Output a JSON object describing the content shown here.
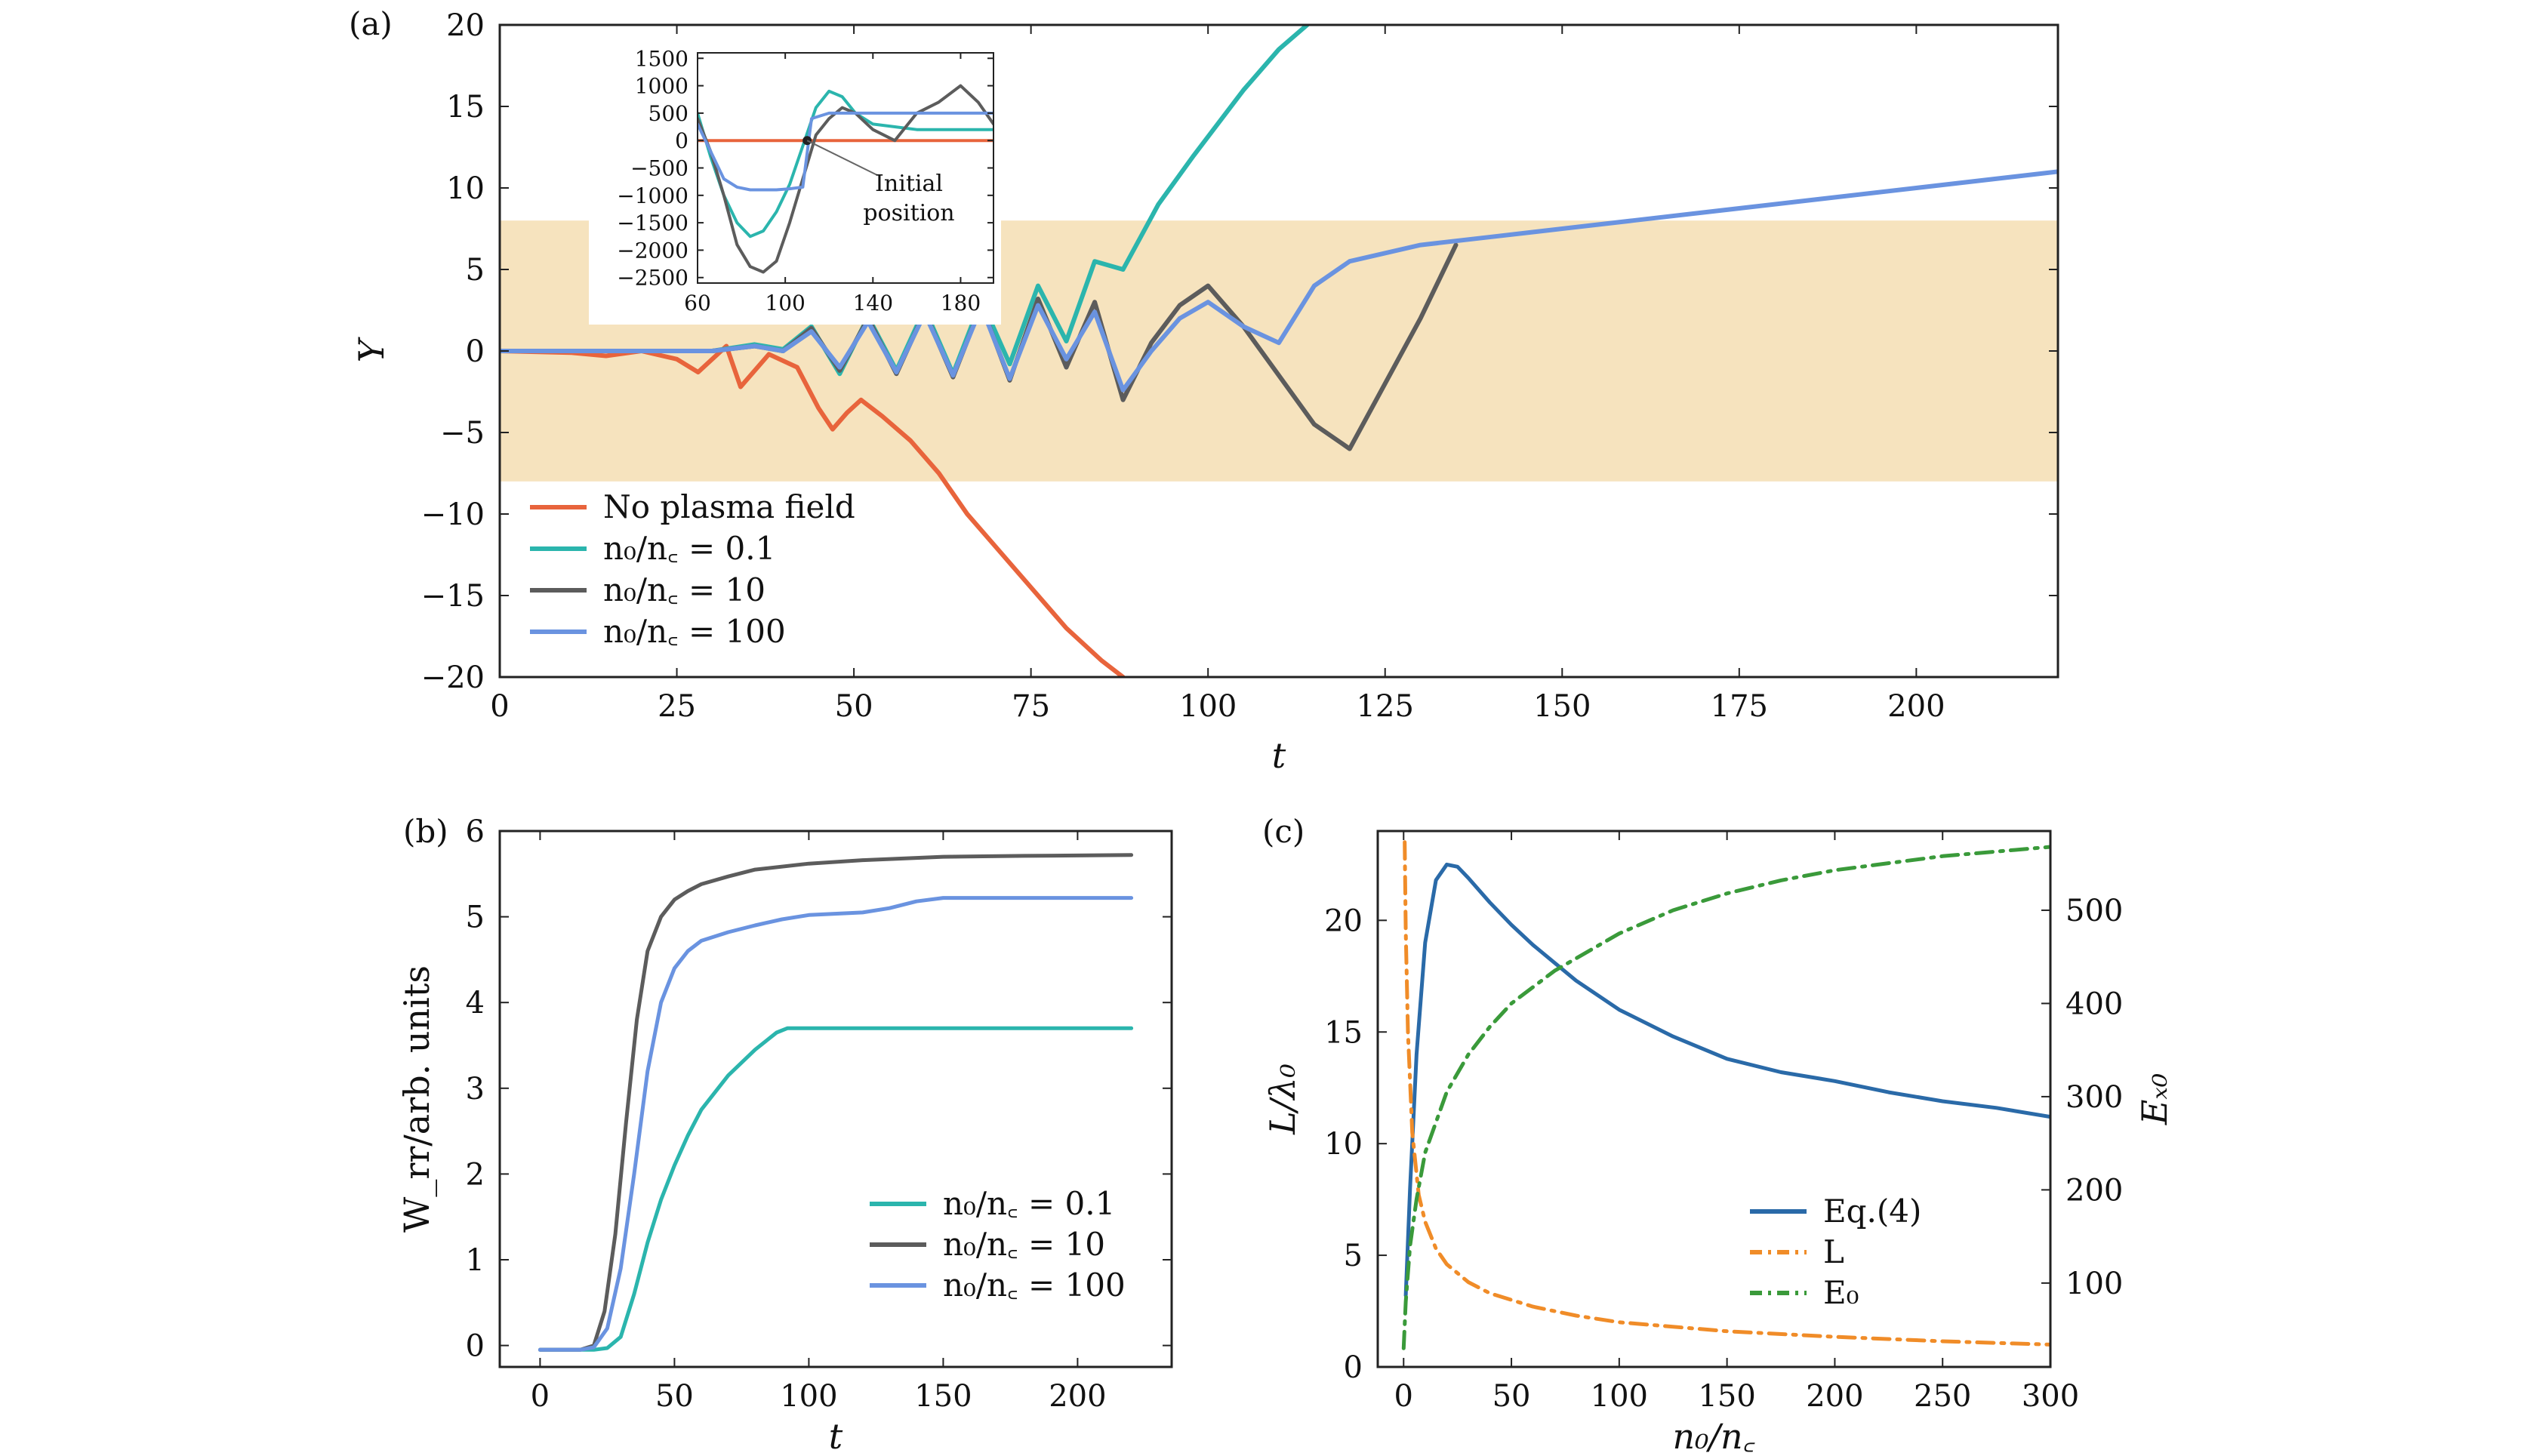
{
  "figure": {
    "panel_labels": [
      "(a)",
      "(b)",
      "(c)"
    ]
  },
  "chart_data": [
    {
      "panel": "(a)",
      "type": "line",
      "xlabel": "t",
      "ylabel": "Y",
      "xlim": [
        0,
        220
      ],
      "ylim": [
        -20,
        20
      ],
      "xticks": [
        0,
        25,
        50,
        75,
        100,
        125,
        150,
        175,
        200
      ],
      "yticks": [
        -20,
        -15,
        -10,
        -5,
        0,
        5,
        10,
        15,
        20
      ],
      "shaded_band": {
        "y_range": [
          -8,
          8
        ],
        "color": "#f5deb3"
      },
      "legend_position": "bottom-left",
      "series": [
        {
          "name": "No plasma field",
          "color": "#e8643c",
          "x": [
            0,
            10,
            15,
            20,
            25,
            28,
            32,
            34,
            38,
            42,
            45,
            47,
            49,
            51,
            54,
            58,
            62,
            66,
            70,
            75,
            80,
            85,
            88
          ],
          "y": [
            0,
            -0.1,
            -0.3,
            0,
            -0.5,
            -1.3,
            0.3,
            -2.2,
            -0.2,
            -1.0,
            -3.5,
            -4.8,
            -3.8,
            -3.0,
            -4.0,
            -5.5,
            -7.5,
            -10.0,
            -12.0,
            -14.5,
            -17.0,
            -19.0,
            -20.0
          ]
        },
        {
          "name": "n₀/n꜀ = 0.1",
          "color": "#2bb5ad",
          "x": [
            0,
            20,
            30,
            36,
            40,
            44,
            48,
            52,
            56,
            60,
            64,
            68,
            72,
            76,
            80,
            84,
            88,
            93,
            98,
            105,
            110,
            114
          ],
          "y": [
            0,
            0,
            0,
            0.4,
            0.1,
            1.5,
            -1.4,
            2.1,
            -1.2,
            2.6,
            -1.4,
            3.1,
            -0.8,
            4.0,
            0.6,
            5.5,
            5.0,
            9.0,
            12.0,
            16.0,
            18.5,
            20.0
          ]
        },
        {
          "name": "n₀/n꜀ = 10",
          "color": "#5c5c5c",
          "x": [
            0,
            20,
            30,
            36,
            40,
            44,
            48,
            52,
            56,
            60,
            64,
            68,
            72,
            76,
            80,
            84,
            88,
            92,
            96,
            100,
            105,
            110,
            115,
            120,
            125,
            130,
            135
          ],
          "y": [
            0,
            0,
            0,
            0.3,
            0,
            1.4,
            -1.2,
            2.0,
            -1.4,
            2.4,
            -1.6,
            2.8,
            -1.8,
            3.2,
            -1.0,
            3.0,
            -3.0,
            0.5,
            2.8,
            4.0,
            1.5,
            -1.5,
            -4.5,
            -6.0,
            -2.0,
            2.0,
            6.5
          ]
        },
        {
          "name": "n₀/n꜀ = 100",
          "color": "#6a93e0",
          "x": [
            0,
            20,
            30,
            36,
            40,
            44,
            48,
            52,
            56,
            60,
            64,
            68,
            72,
            76,
            80,
            84,
            88,
            92,
            96,
            100,
            105,
            110,
            115,
            120,
            130,
            140,
            150,
            160,
            180,
            200,
            220
          ],
          "y": [
            0,
            0,
            0,
            0.3,
            0,
            1.2,
            -1.0,
            1.8,
            -1.3,
            2.3,
            -1.5,
            2.7,
            -1.7,
            2.8,
            -0.5,
            2.4,
            -2.4,
            0.0,
            2.0,
            3.0,
            1.5,
            0.5,
            4.0,
            5.5,
            6.5,
            7.0,
            7.5,
            8.0,
            9.0,
            10.0,
            11.0
          ]
        }
      ]
    },
    {
      "panel": "(a) inset",
      "type": "line",
      "xlim": [
        60,
        195
      ],
      "ylim": [
        -2600,
        1600
      ],
      "xticks": [
        60,
        100,
        140,
        180
      ],
      "yticks": [
        1500,
        1000,
        500,
        0,
        -500,
        -1000,
        -1500,
        -2000,
        -2500
      ],
      "annotation": {
        "text": [
          "Initial",
          "position"
        ],
        "x": 110,
        "y": 0
      },
      "series": [
        {
          "color": "#e8643c",
          "x": [
            60,
            70,
            80,
            90,
            100,
            110,
            120,
            140,
            160,
            195
          ],
          "y": [
            0,
            0,
            0,
            0,
            0,
            0,
            0,
            0,
            0,
            0
          ]
        },
        {
          "color": "#2bb5ad",
          "x": [
            60,
            66,
            72,
            78,
            84,
            90,
            96,
            102,
            108,
            114,
            120,
            126,
            132,
            140,
            150,
            160,
            170,
            180,
            195
          ],
          "y": [
            500,
            -300,
            -1000,
            -1500,
            -1750,
            -1650,
            -1300,
            -800,
            -100,
            600,
            900,
            800,
            500,
            300,
            250,
            200,
            200,
            200,
            200
          ]
        },
        {
          "color": "#5c5c5c",
          "x": [
            60,
            66,
            72,
            78,
            84,
            90,
            96,
            102,
            108,
            114,
            120,
            126,
            132,
            140,
            150,
            160,
            170,
            180,
            188,
            195
          ],
          "y": [
            400,
            -200,
            -1000,
            -1900,
            -2300,
            -2400,
            -2200,
            -1500,
            -700,
            100,
            400,
            600,
            500,
            200,
            0,
            500,
            700,
            1000,
            700,
            300
          ]
        },
        {
          "color": "#6a93e0",
          "x": [
            60,
            66,
            72,
            78,
            84,
            90,
            96,
            102,
            108,
            112,
            120,
            130,
            140,
            160,
            195
          ],
          "y": [
            300,
            -200,
            -700,
            -850,
            -900,
            -900,
            -900,
            -880,
            -850,
            400,
            500,
            500,
            500,
            500,
            500
          ]
        }
      ]
    },
    {
      "panel": "(b)",
      "type": "line",
      "xlabel": "t",
      "ylabel": "W_rr/arb. units",
      "xlim": [
        -15,
        235
      ],
      "ylim": [
        -0.25,
        6
      ],
      "xticks": [
        0,
        50,
        100,
        150,
        200
      ],
      "yticks": [
        0,
        1,
        2,
        3,
        4,
        5,
        6
      ],
      "legend_position": "bottom-right",
      "series": [
        {
          "name": "n₀/n꜀ = 0.1",
          "color": "#2bb5ad",
          "x": [
            0,
            15,
            20,
            25,
            30,
            35,
            40,
            45,
            50,
            55,
            60,
            70,
            80,
            88,
            92,
            100,
            150,
            220
          ],
          "y": [
            -0.05,
            -0.05,
            -0.05,
            -0.03,
            0.1,
            0.6,
            1.2,
            1.7,
            2.1,
            2.45,
            2.75,
            3.15,
            3.45,
            3.65,
            3.7,
            3.7,
            3.7,
            3.7
          ]
        },
        {
          "name": "n₀/n꜀ = 10",
          "color": "#5c5c5c",
          "x": [
            0,
            15,
            20,
            24,
            28,
            32,
            36,
            40,
            45,
            50,
            55,
            60,
            70,
            80,
            100,
            120,
            150,
            180,
            220
          ],
          "y": [
            -0.05,
            -0.05,
            0.0,
            0.4,
            1.3,
            2.6,
            3.8,
            4.6,
            5.0,
            5.2,
            5.3,
            5.38,
            5.47,
            5.55,
            5.62,
            5.66,
            5.7,
            5.71,
            5.72
          ]
        },
        {
          "name": "n₀/n꜀ = 100",
          "color": "#6a93e0",
          "x": [
            0,
            15,
            20,
            25,
            30,
            35,
            40,
            45,
            50,
            55,
            60,
            70,
            80,
            90,
            100,
            120,
            130,
            140,
            150,
            180,
            220
          ],
          "y": [
            -0.05,
            -0.05,
            -0.02,
            0.2,
            0.9,
            2.0,
            3.2,
            4.0,
            4.4,
            4.6,
            4.72,
            4.82,
            4.9,
            4.97,
            5.02,
            5.05,
            5.1,
            5.18,
            5.22,
            5.22,
            5.22
          ]
        }
      ]
    },
    {
      "panel": "(c)",
      "type": "line",
      "xlabel": "n₀/n꜀",
      "ylabel": "L/λ₀",
      "y2label": "Eₓ₀",
      "xlim": [
        -12,
        300
      ],
      "ylim": [
        0,
        24
      ],
      "y2lim": [
        10,
        585
      ],
      "xticks": [
        0,
        50,
        100,
        150,
        200,
        250,
        300
      ],
      "yticks": [
        0,
        5,
        10,
        15,
        20
      ],
      "y2ticks": [
        100,
        200,
        300,
        400,
        500
      ],
      "legend_position": "bottom-right",
      "series": [
        {
          "name": "Eq.(4)",
          "color": "#2a6aa8",
          "axis": "left",
          "x": [
            1,
            3,
            6,
            10,
            15,
            20,
            25,
            30,
            40,
            50,
            60,
            80,
            100,
            125,
            150,
            175,
            200,
            225,
            250,
            275,
            300
          ],
          "y": [
            3.2,
            8.0,
            14.0,
            19.0,
            21.8,
            22.5,
            22.4,
            21.9,
            20.8,
            19.8,
            18.9,
            17.3,
            16.0,
            14.8,
            13.8,
            13.2,
            12.8,
            12.3,
            11.9,
            11.6,
            11.2
          ]
        },
        {
          "name": "L",
          "color": "#f08c28",
          "axis": "left",
          "dash": "dashdot",
          "x": [
            0.5,
            1,
            2,
            4,
            7,
            10,
            15,
            20,
            30,
            40,
            60,
            80,
            100,
            150,
            200,
            250,
            300
          ],
          "y": [
            23.5,
            19.5,
            15.0,
            10.5,
            7.7,
            6.5,
            5.3,
            4.6,
            3.8,
            3.3,
            2.7,
            2.3,
            2.0,
            1.6,
            1.35,
            1.15,
            1.0
          ]
        },
        {
          "name": "E₀",
          "color": "#3a9a3a",
          "axis": "right",
          "dash": "dashdot",
          "x": [
            0,
            1,
            3,
            6,
            10,
            20,
            30,
            40,
            50,
            70,
            100,
            125,
            150,
            175,
            200,
            250,
            300
          ],
          "y": [
            30,
            80,
            140,
            190,
            240,
            305,
            345,
            375,
            400,
            435,
            475,
            500,
            518,
            532,
            543,
            558,
            568
          ]
        }
      ]
    }
  ]
}
